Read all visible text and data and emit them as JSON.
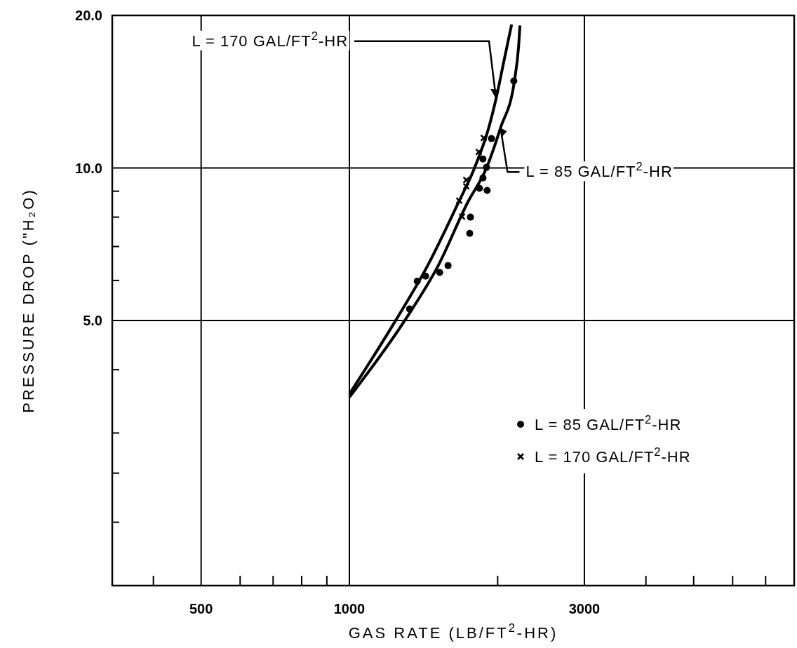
{
  "chart_data": {
    "type": "line",
    "xlabel": "GAS RATE (LB/FT$^{2}$-HR)",
    "ylabel": "PRESSURE DROP (\"H₂O)",
    "log": "xy",
    "xlim": [
      330,
      8000
    ],
    "xticks": [
      {
        "value": 400,
        "label": null
      },
      500,
      {
        "value": 600,
        "label": null
      },
      {
        "value": 700,
        "label": null
      },
      {
        "value": 800,
        "label": null
      },
      {
        "value": 900,
        "label": null
      },
      1000,
      {
        "value": 2000,
        "label": null
      },
      3000,
      {
        "value": 4000,
        "label": null
      },
      {
        "value": 5000,
        "label": null
      },
      {
        "value": 6000,
        "label": null
      },
      {
        "value": 7000,
        "label": null
      }
    ],
    "ylim": [
      1.5,
      20
    ],
    "yticks": [
      {
        "value": 2,
        "label": null
      },
      {
        "value": 2.5,
        "label": null
      },
      {
        "value": 3,
        "label": null
      },
      {
        "value": 4,
        "label": null
      },
      {
        "value": 5,
        "label": "5.0"
      },
      {
        "value": 6,
        "label": null
      },
      {
        "value": 7,
        "label": null
      },
      {
        "value": 8,
        "label": null
      },
      {
        "value": 9,
        "label": null
      },
      {
        "value": 10,
        "label": "10.0"
      },
      {
        "value": 20,
        "label": "20.0"
      }
    ],
    "grid": true,
    "legend": "bottom right",
    "series": [
      {
        "color": "#000000",
        "marker": "none",
        "line_style": "solid",
        "x": [
          1000,
          1241,
          1442,
          1665,
          1795,
          1918,
          1985,
          2066,
          2135
        ],
        "values": [
          3.58,
          5.0,
          6.42,
          8.55,
          10.0,
          12.0,
          13.7,
          16.5,
          19.2
        ]
      },
      {
        "color": "#000000",
        "marker": "none",
        "line_style": "solid",
        "x": [
          1000,
          1295,
          1515,
          1738,
          1898,
          2027,
          2163,
          2206,
          2220
        ],
        "values": [
          3.53,
          5.0,
          6.42,
          8.55,
          10.0,
          12.0,
          14.85,
          17.4,
          19.1
        ]
      },
      {
        "type": "scatter",
        "name": "L = 85 GAL/FT$^{2}$-HR",
        "color": "#000000",
        "marker": "circle",
        "x": [
          1325,
          1373,
          1428,
          1525,
          1586,
          1755,
          1761,
          1837,
          1867,
          1867,
          1898,
          1904,
          1943,
          2157
        ],
        "values": [
          5.27,
          5.98,
          6.12,
          6.22,
          6.42,
          7.43,
          8.0,
          9.12,
          9.56,
          10.42,
          10.03,
          9.03,
          11.43,
          14.85
        ]
      },
      {
        "type": "scatter",
        "name": "L = 170 GAL/FT$^{2}$-HR",
        "color": "#000000",
        "marker": "cross",
        "x": [
          1693,
          1671,
          1727,
          1727,
          1831,
          1874
        ],
        "values": [
          8.02,
          8.62,
          9.2,
          9.47,
          10.76,
          11.47
        ]
      }
    ],
    "annotations": [
      {
        "text": "L = 170 GAL/FT$^{2}$-HR",
        "x": 1985,
        "y": 13.7
      },
      {
        "text": "L = 85 GAL/FT$^{2}$-HR",
        "x": 2027,
        "y": 12.0
      }
    ]
  }
}
